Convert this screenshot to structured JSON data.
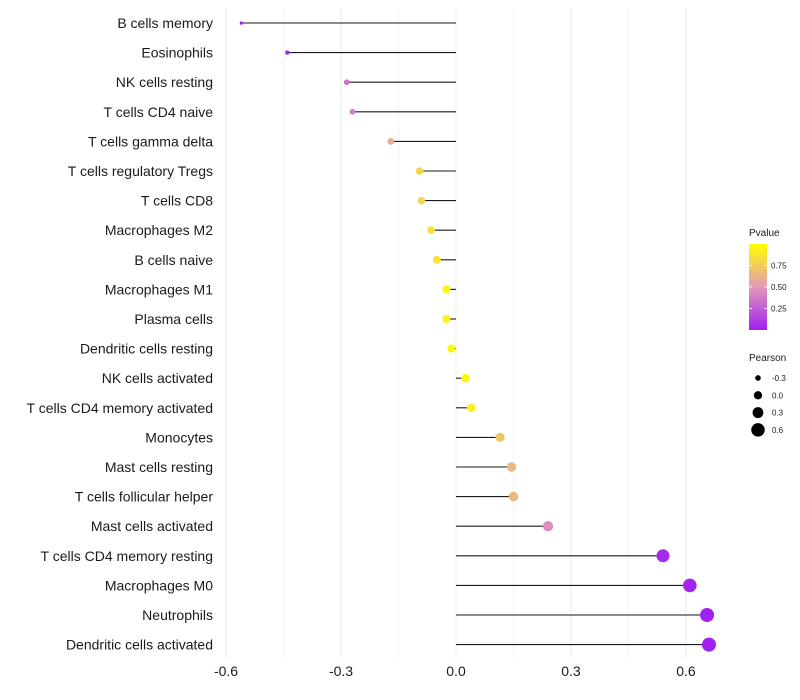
{
  "chart_data": {
    "type": "lollipop",
    "title": "",
    "xlabel": "",
    "ylabel": "",
    "xlim": [
      -0.62,
      0.7
    ],
    "x_ticks": [
      -0.6,
      -0.3,
      0.0,
      0.3,
      0.6
    ],
    "x_tick_labels": [
      "-0.6",
      "-0.3",
      "0.0",
      "0.3",
      "0.6"
    ],
    "grid": true,
    "categories": [
      "B cells memory",
      "Eosinophils",
      "NK cells resting",
      "T cells CD4 naive",
      "T cells gamma delta",
      "T cells regulatory  Tregs",
      "T cells CD8",
      "Macrophages M2",
      "B cells naive",
      "Macrophages M1",
      "Plasma cells",
      "Dendritic cells resting",
      "NK cells activated",
      "T cells CD4 memory activated",
      "Monocytes",
      "Mast cells resting",
      "T cells follicular helper",
      "Mast cells activated",
      "T cells CD4 memory resting",
      "Macrophages M0",
      "Neutrophils",
      "Dendritic cells activated"
    ],
    "pearson": [
      -0.56,
      -0.44,
      -0.285,
      -0.27,
      -0.17,
      -0.095,
      -0.09,
      -0.065,
      -0.05,
      -0.025,
      -0.025,
      -0.012,
      0.025,
      0.04,
      0.115,
      0.145,
      0.15,
      0.24,
      0.54,
      0.61,
      0.655,
      0.66
    ],
    "pvalue": [
      0.0,
      0.02,
      0.35,
      0.38,
      0.6,
      0.8,
      0.8,
      0.85,
      0.88,
      0.95,
      0.95,
      0.97,
      0.95,
      0.92,
      0.72,
      0.65,
      0.65,
      0.45,
      0.05,
      0.02,
      0.01,
      0.01
    ],
    "legend": {
      "color": {
        "title": "Pvalue",
        "ticks": [
          0.25,
          0.5,
          0.75
        ],
        "tick_labels": [
          "0.25",
          "0.50",
          "0.75"
        ],
        "range": [
          0.0,
          1.0
        ],
        "low_color": "#a020f0",
        "mid_color": "#e39ab8",
        "high_color": "#ffff00",
        "placement": "right"
      },
      "size": {
        "title": "Pearson",
        "values": [
          -0.3,
          0.0,
          0.3,
          0.6
        ],
        "labels": [
          "-0.3",
          "0.0",
          "0.3",
          "0.6"
        ],
        "placement": "right"
      }
    },
    "segment_color": "#1a1a1a",
    "grid_color": "#ebebeb"
  }
}
